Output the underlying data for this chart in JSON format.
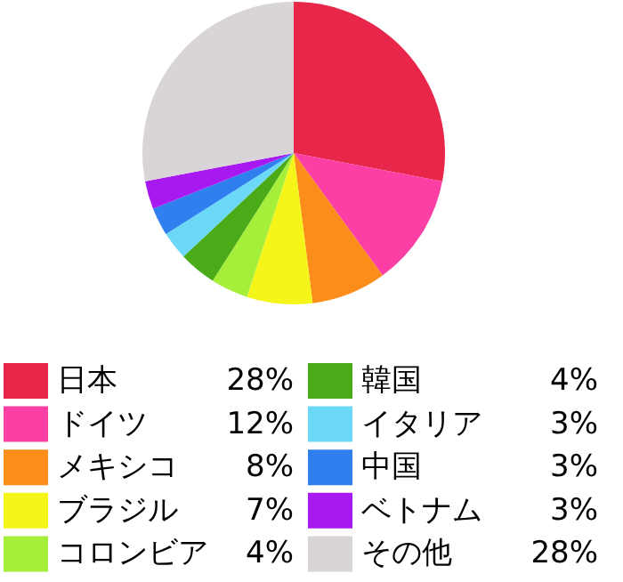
{
  "chart_data": {
    "type": "pie",
    "categories": [
      "日本",
      "ドイツ",
      "メキシコ",
      "ブラジル",
      "コロンビア",
      "韓国",
      "イタリア",
      "中国",
      "ベトナム",
      "その他"
    ],
    "values": [
      28,
      12,
      8,
      7,
      4,
      4,
      3,
      3,
      3,
      28
    ],
    "value_labels": [
      "28%",
      "12%",
      "8%",
      "7%",
      "4%",
      "4%",
      "3%",
      "3%",
      "3%",
      "28%"
    ],
    "colors": [
      "#e8264a",
      "#fb3fa4",
      "#fd8d1a",
      "#f5f51a",
      "#a5ef3a",
      "#4aaa18",
      "#6cd8f8",
      "#2f80ee",
      "#a818f0",
      "#d8d4d8"
    ],
    "legend": "bottom"
  }
}
